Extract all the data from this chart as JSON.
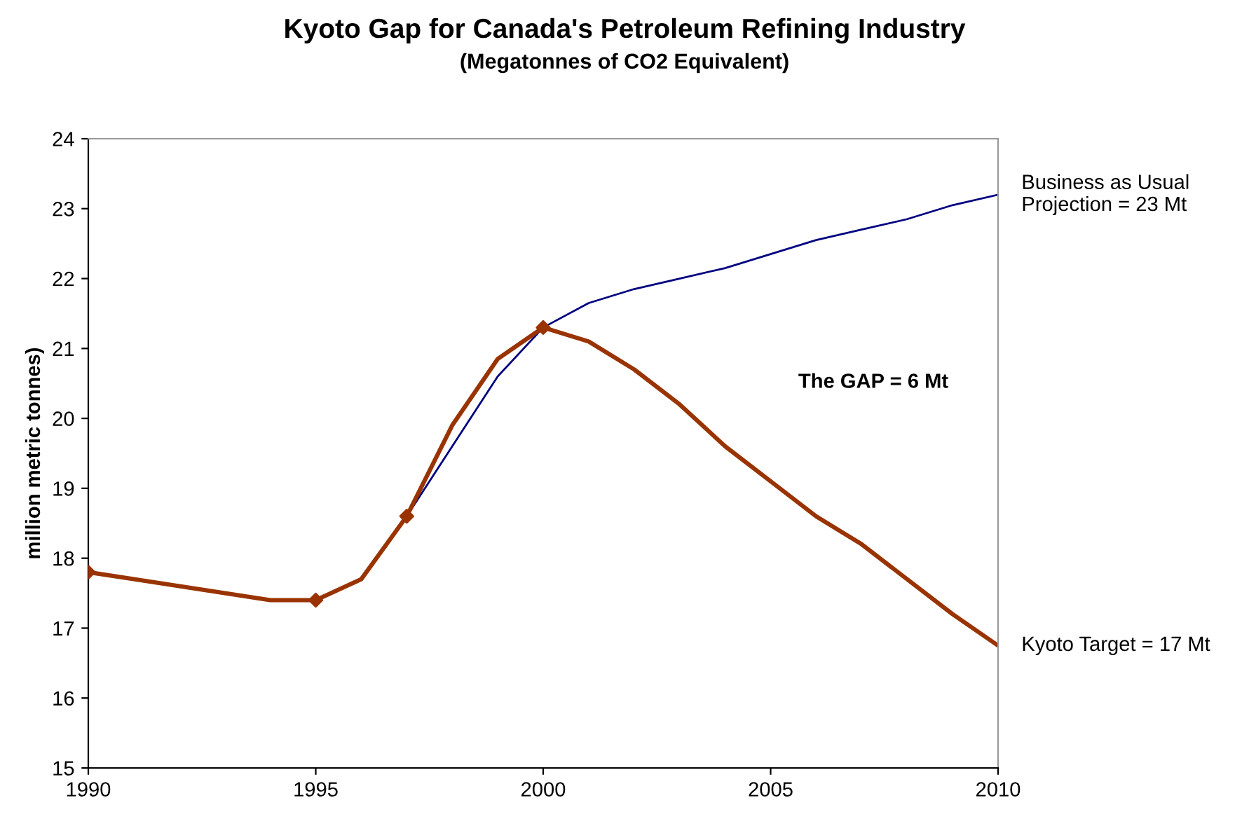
{
  "chart_data": {
    "type": "line",
    "title": "Kyoto Gap for Canada's Petroleum Refining Industry",
    "subtitle": "(Megatonnes of CO2 Equivalent)",
    "ylabel": "million metric tonnes)",
    "xlim": [
      1990,
      2010
    ],
    "xticks": [
      1990,
      1995,
      2000,
      2005,
      2010
    ],
    "ylim": [
      15,
      24
    ],
    "yticks": [
      15,
      16,
      17,
      18,
      19,
      20,
      21,
      22,
      23,
      24
    ],
    "grid": false,
    "legend": false,
    "series": [
      {
        "name": "Business as Usual Projection = 23 Mt",
        "color": "#000080",
        "marker": "none",
        "x": [
          1997,
          1998,
          1999,
          2000,
          2001,
          2002,
          2003,
          2004,
          2005,
          2006,
          2007,
          2008,
          2009,
          2010
        ],
        "values": [
          18.6,
          19.6,
          20.6,
          21.3,
          21.65,
          21.85,
          22.0,
          22.15,
          22.35,
          22.55,
          22.7,
          22.85,
          23.05,
          23.2
        ]
      },
      {
        "name": "Kyoto Target = 17 Mt",
        "color": "#993300",
        "marker": "none",
        "x": [
          1990,
          1991,
          1992,
          1993,
          1994,
          1995,
          1996,
          1997,
          1998,
          1999,
          2000,
          2001,
          2002,
          2003,
          2004,
          2005,
          2006,
          2007,
          2008,
          2009,
          2010
        ],
        "values": [
          17.8,
          17.7,
          17.6,
          17.5,
          17.4,
          17.4,
          17.7,
          18.6,
          19.9,
          20.85,
          21.3,
          21.1,
          20.7,
          20.2,
          19.6,
          19.1,
          18.6,
          18.2,
          17.7,
          17.2,
          16.75
        ]
      },
      {
        "type": "scatter",
        "color": "#993300",
        "marker": "diamond",
        "x": [
          1990,
          1995,
          1997,
          2000
        ],
        "values": [
          17.8,
          17.4,
          18.6,
          21.3
        ]
      }
    ],
    "annotations": [
      "The GAP = 6 Mt"
    ]
  }
}
